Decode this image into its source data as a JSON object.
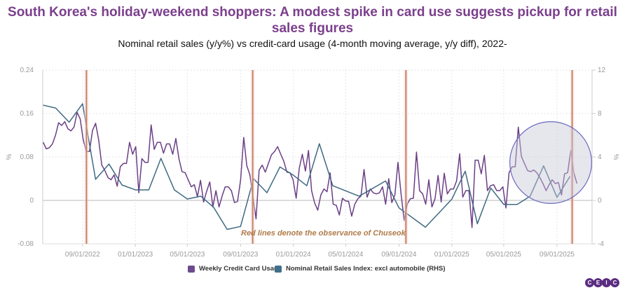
{
  "header": {
    "title": "South Korea's holiday-weekend shoppers: A modest spike in card use suggests pickup for retail sales figures",
    "subtitle": "Nominal retail sales (y/y%) vs credit-card usage (4-month moving average, y/y diff), 2022-"
  },
  "chart_data": {
    "type": "line",
    "xlim": [
      "2022-06-01",
      "2025-11-21"
    ],
    "x_ticks": [
      "09/01/2022",
      "01/01/2023",
      "05/01/2023",
      "09/01/2023",
      "01/01/2024",
      "05/01/2024",
      "09/01/2024",
      "01/01/2025",
      "05/01/2025",
      "09/01/2025"
    ],
    "x_tick_dates": [
      "2022-09-01",
      "2023-01-01",
      "2023-05-01",
      "2023-09-01",
      "2024-01-01",
      "2024-05-01",
      "2024-09-01",
      "2025-01-01",
      "2025-05-01",
      "2025-09-01"
    ],
    "y_left": {
      "label": "%",
      "ylim": [
        -0.08,
        0.24
      ],
      "ticks": [
        "0.24",
        "0.16",
        "0.08",
        "0",
        "-0.08"
      ],
      "tick_values": [
        0.24,
        0.16,
        0.08,
        0,
        -0.08
      ]
    },
    "y_right": {
      "label": "%",
      "ylim": [
        -4,
        12
      ],
      "ticks": [
        "12",
        "8",
        "4",
        "0",
        "-4"
      ],
      "tick_values": [
        12,
        8,
        4,
        0,
        -4
      ]
    },
    "grid": true,
    "legend_placement": "bottom",
    "series": [
      {
        "name": "Weekly Credit Card Usage",
        "axis": "left",
        "color": "#6b3f86",
        "frequency": "weekly",
        "start": "2022-06-02",
        "end": "2025-10-17",
        "values": [
          0.107,
          0.095,
          0.097,
          0.104,
          0.12,
          0.143,
          0.138,
          0.145,
          0.132,
          0.128,
          0.135,
          0.162,
          0.15,
          0.111,
          0.09,
          0.09,
          0.129,
          0.142,
          0.111,
          0.065,
          0.055,
          0.042,
          0.038,
          0.047,
          0.026,
          0.062,
          0.068,
          0.068,
          0.107,
          0.085,
          0.099,
          0.014,
          0.077,
          0.07,
          0.07,
          0.139,
          0.094,
          0.107,
          0.107,
          0.087,
          0.104,
          0.104,
          0.085,
          0.114,
          0.077,
          0.053,
          0.051,
          0.038,
          0.025,
          0.029,
          0.007,
          0.037,
          -0.003,
          0.017,
          0.034,
          -0.012,
          0.018,
          -0.012,
          0.008,
          0.025,
          0.025,
          0.018,
          -0.004,
          -0.002,
          0.038,
          0.116,
          0.064,
          0.047,
          0.006,
          -0.034,
          0.056,
          0.065,
          0.052,
          0.068,
          0.084,
          0.09,
          0.099,
          0.085,
          0.072,
          0.052,
          0.051,
          0.038,
          0.004,
          0.059,
          0.085,
          0.054,
          0.092,
          0.018,
          -0.005,
          -0.018,
          0.01,
          0.021,
          0.016,
          0.051,
          -0.007,
          -0.009,
          -0.027,
          0.004,
          -0.001,
          -0.002,
          -0.029,
          -0.007,
          0.003,
          0.008,
          0.057,
          0.006,
          0.021,
          0.014,
          0.012,
          0.014,
          0.025,
          -0.007,
          0.04,
          -0.004,
          0.01,
          0.07,
          0.012,
          -0.037,
          -0.007,
          0.003,
          0.004,
          0.089,
          0.018,
          0.012,
          -0.007,
          0.038,
          -0.012,
          0.003,
          0.046,
          -0.003,
          0.05,
          0.012,
          0.021,
          0.021,
          0.036,
          0.086,
          0.006,
          0.018,
          0.018,
          -0.05,
          0.074,
          0.074,
          0.049,
          0.083,
          0.018,
          0.027,
          0.029,
          0.018,
          0.018,
          0.025,
          -0.014,
          0.051,
          0.062,
          0.062,
          0.135,
          0.081,
          0.068,
          0.055,
          0.053,
          0.056,
          0.051,
          0.042,
          0.031,
          0.018,
          0.029,
          0.038,
          0.031,
          0.033,
          0.01,
          0.049,
          0.051,
          0.092,
          0.051,
          0.031
        ]
      },
      {
        "name": "Nominal Retail Sales Index: excl automobile (RHS)",
        "axis": "right",
        "color": "#3f6a82",
        "points": [
          [
            "2022-06-02",
            8.77
          ],
          [
            "2022-07-01",
            8.5
          ],
          [
            "2022-08-01",
            7.2
          ],
          [
            "2022-09-01",
            8.9
          ],
          [
            "2022-10-01",
            1.94
          ],
          [
            "2022-11-01",
            3.35
          ],
          [
            "2022-12-01",
            1.42
          ],
          [
            "2023-01-01",
            0.97
          ],
          [
            "2023-02-01",
            0.97
          ],
          [
            "2023-03-01",
            3.87
          ],
          [
            "2023-04-01",
            0.97
          ],
          [
            "2023-05-01",
            0.13
          ],
          [
            "2023-06-01",
            0.39
          ],
          [
            "2023-07-01",
            -0.65
          ],
          [
            "2023-08-01",
            -2.67
          ],
          [
            "2023-09-01",
            -2.4
          ],
          [
            "2023-10-01",
            2.0
          ],
          [
            "2023-11-01",
            0.71
          ],
          [
            "2023-12-01",
            3.08
          ],
          [
            "2024-01-01",
            2.32
          ],
          [
            "2024-02-01",
            1.35
          ],
          [
            "2024-03-01",
            5.22
          ],
          [
            "2024-04-01",
            1.35
          ],
          [
            "2024-06-01",
            0.39
          ],
          [
            "2024-08-01",
            1.79
          ],
          [
            "2024-09-01",
            -0.69
          ],
          [
            "2024-11-01",
            -2.47
          ],
          [
            "2025-01-01",
            0.11
          ],
          [
            "2025-02-01",
            2.69
          ],
          [
            "2025-03-01",
            -2.15
          ],
          [
            "2025-04-01",
            1.14
          ],
          [
            "2025-05-01",
            -0.37
          ],
          [
            "2025-06-01",
            -0.37
          ],
          [
            "2025-07-01",
            0.39
          ],
          [
            "2025-08-01",
            3.18
          ],
          [
            "2025-09-01",
            0.28
          ],
          [
            "2025-10-01",
            2.21
          ]
        ]
      }
    ],
    "markers": {
      "color": "#c0865a",
      "dates": [
        "2022-09-10",
        "2023-09-29",
        "2024-09-17",
        "2025-10-06"
      ]
    },
    "annotation": {
      "text": "Red lines denote the observance of Chuseok",
      "color": "#b07a48"
    },
    "highlight": {
      "from": "2025-05-15",
      "to": "2025-11-20",
      "fill": "#c8c8d8",
      "stroke": "#6b6bc0"
    }
  },
  "legend": {
    "items": [
      {
        "label": "Weekly Credit Card Usage",
        "color": "#6d4a8e"
      },
      {
        "label": "Nominal Retail Sales Index: excl automobile (RHS)",
        "color": "#3f6f8a"
      }
    ]
  },
  "logo": {
    "letters": [
      "C",
      "E",
      "I",
      "C"
    ]
  }
}
